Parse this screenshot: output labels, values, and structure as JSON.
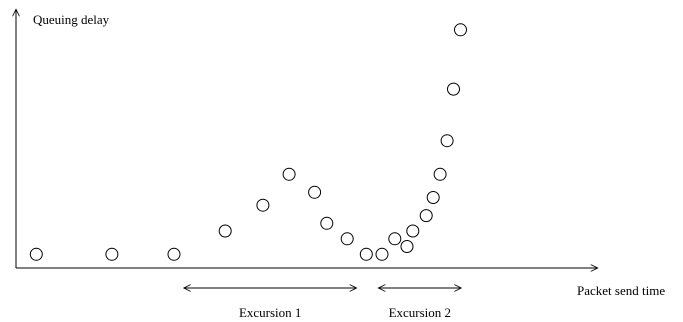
{
  "chart_data": {
    "type": "scatter",
    "title": "",
    "ylabel": "Queuing delay",
    "xlabel": "Packet send time",
    "grid": false,
    "legend": "none",
    "xlim": [
      0,
      100
    ],
    "ylim": [
      0,
      100
    ],
    "points": [
      {
        "x": 3.5,
        "y": 3
      },
      {
        "x": 16.5,
        "y": 3
      },
      {
        "x": 27.2,
        "y": 3
      },
      {
        "x": 36.0,
        "y": 12
      },
      {
        "x": 42.5,
        "y": 22
      },
      {
        "x": 47.0,
        "y": 34
      },
      {
        "x": 51.4,
        "y": 27
      },
      {
        "x": 53.5,
        "y": 15
      },
      {
        "x": 57.0,
        "y": 9
      },
      {
        "x": 60.3,
        "y": 3
      },
      {
        "x": 63.0,
        "y": 3
      },
      {
        "x": 65.2,
        "y": 9
      },
      {
        "x": 67.3,
        "y": 6
      },
      {
        "x": 68.3,
        "y": 12
      },
      {
        "x": 70.6,
        "y": 18
      },
      {
        "x": 71.8,
        "y": 25
      },
      {
        "x": 73.0,
        "y": 34
      },
      {
        "x": 74.2,
        "y": 47
      },
      {
        "x": 75.3,
        "y": 67
      },
      {
        "x": 76.5,
        "y": 90
      }
    ],
    "annotations": [
      {
        "label": "Excursion 1",
        "x_start": 29.0,
        "x_end": 58.5
      },
      {
        "label": "Excursion 2",
        "x_start": 62.5,
        "x_end": 76.5
      }
    ]
  }
}
